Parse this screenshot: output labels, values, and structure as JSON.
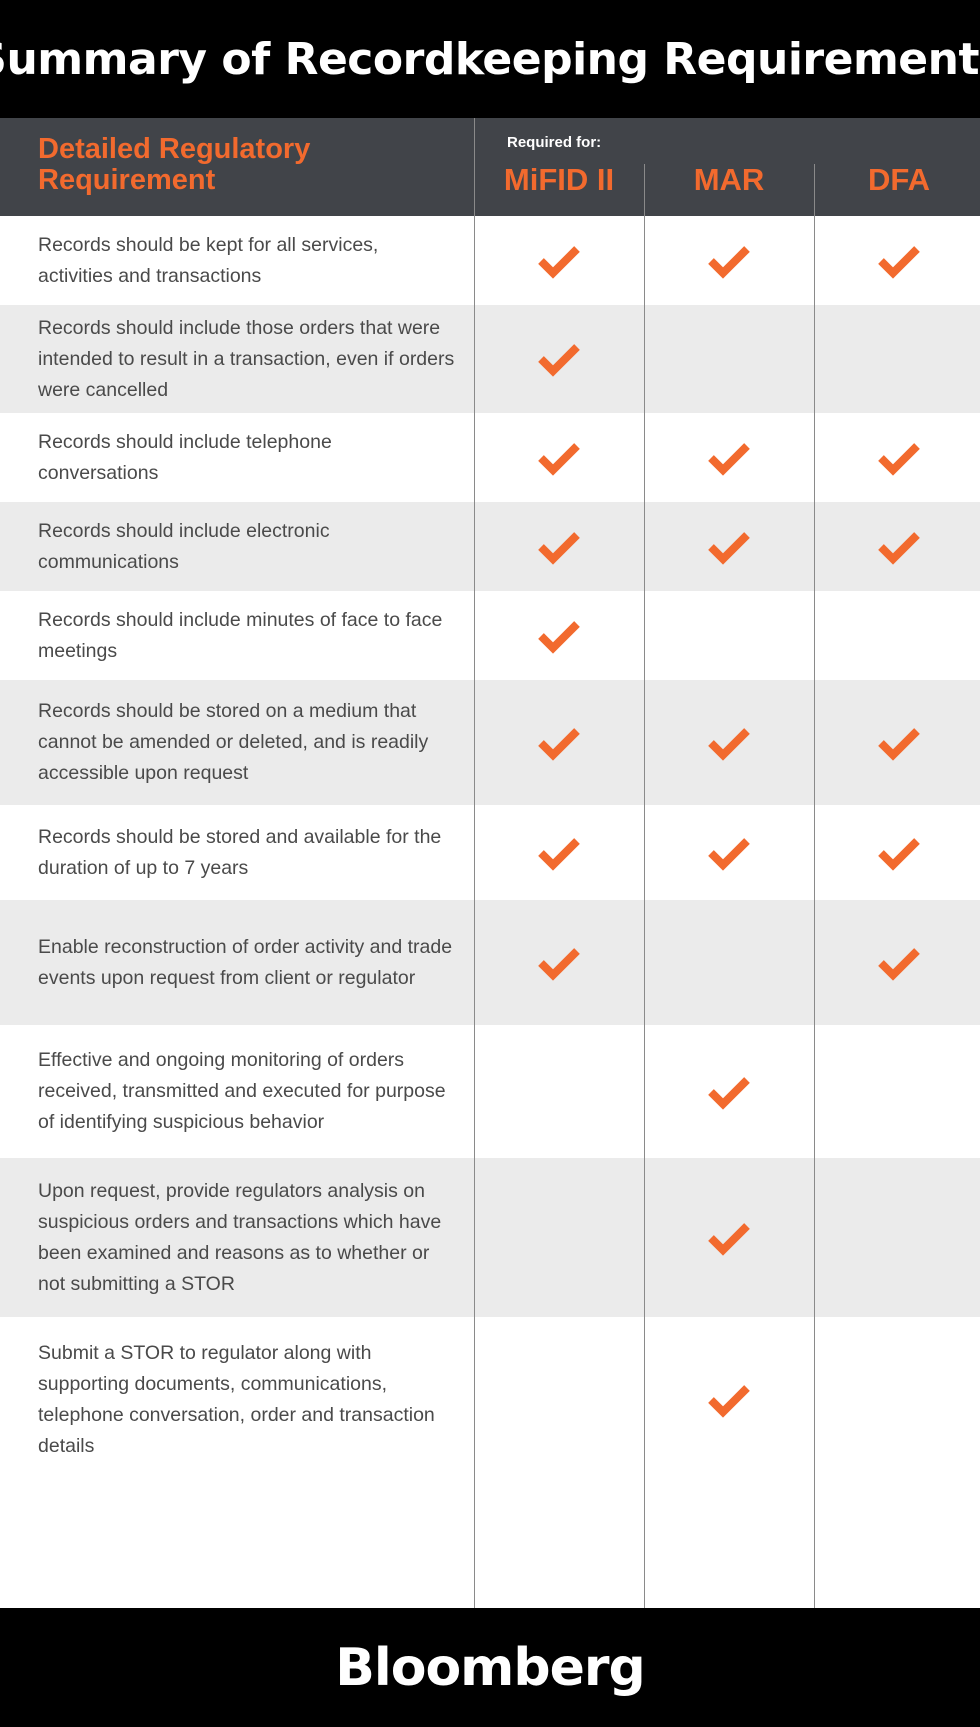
{
  "title": "Summary of Recordkeeping Requirements",
  "header": {
    "requirement_label": "Detailed Regulatory Requirement",
    "required_for": "Required for:",
    "columns": [
      "MiFID II",
      "MAR",
      "DFA"
    ]
  },
  "colors": {
    "accent": "#f26a2e",
    "header_bg": "#414449",
    "alt_row": "#ebebeb"
  },
  "rows": [
    {
      "text": "Records should be kept for all services, activities and transactions",
      "checks": [
        true,
        true,
        true
      ]
    },
    {
      "text": "Records should include those orders that were intended to result in a transaction, even if orders were cancelled",
      "checks": [
        true,
        false,
        false
      ]
    },
    {
      "text": "Records should include telephone conversations",
      "checks": [
        true,
        true,
        true
      ]
    },
    {
      "text": "Records should include electronic communications",
      "checks": [
        true,
        true,
        true
      ]
    },
    {
      "text": "Records should include minutes of face to face meetings",
      "checks": [
        true,
        false,
        false
      ]
    },
    {
      "text": "Records should be stored on a medium that cannot be amended or deleted, and is readily accessible upon request",
      "checks": [
        true,
        true,
        true
      ]
    },
    {
      "text": "Records should be stored and available for the duration of up to 7 years",
      "checks": [
        true,
        true,
        true
      ]
    },
    {
      "text": "Enable reconstruction of order activity and trade events upon request from client or regulator",
      "checks": [
        true,
        false,
        true
      ]
    },
    {
      "text": "Effective and ongoing monitoring of orders received, transmitted and executed for purpose of identifying suspicious behavior",
      "checks": [
        false,
        true,
        false
      ]
    },
    {
      "text": "Upon request, provide regulators analysis on suspicious orders and transactions which have been examined and reasons as to whether or not submitting a STOR",
      "checks": [
        false,
        true,
        false
      ]
    },
    {
      "text": "Submit a STOR to regulator along with supporting documents, communications, telephone conversation, order and transaction details",
      "checks": [
        false,
        true,
        false
      ]
    }
  ],
  "footer": {
    "brand": "Bloomberg"
  },
  "icons": {
    "check": "checkmark-icon"
  }
}
